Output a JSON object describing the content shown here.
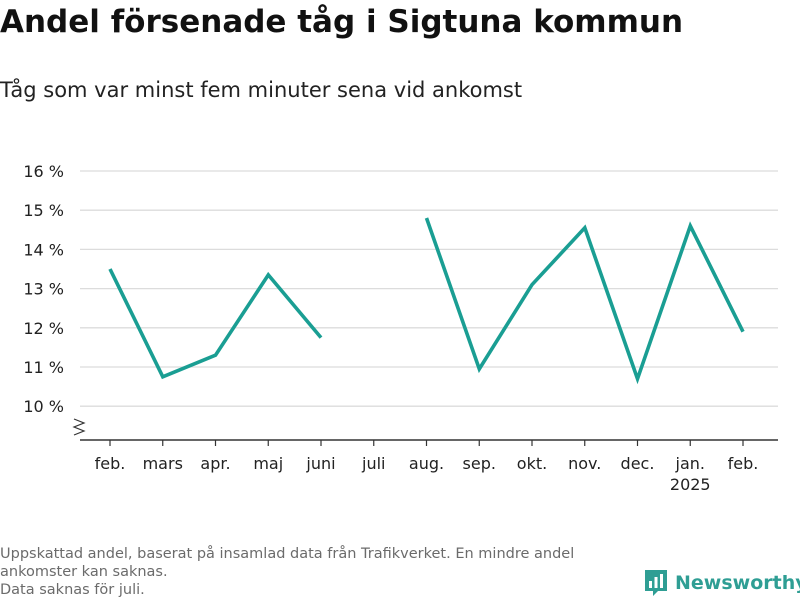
{
  "header": {
    "title": "Andel försenade tåg i Sigtuna kommun",
    "subtitle": "Tåg som var minst fem minuter sena vid ankomst"
  },
  "footer": {
    "note_line1": "Uppskattad andel, baserat på insamlad data från Trafikverket. En mindre andel ankomster kan saknas.",
    "note_line2": "Data saknas för juli.",
    "brand": "Newsworthy",
    "brand_color": "#2f9e94"
  },
  "chart_data": {
    "type": "line",
    "title": "Andel försenade tåg i Sigtuna kommun",
    "subtitle": "Tåg som var minst fem minuter sena vid ankomst",
    "categories": [
      "feb.",
      "mars",
      "apr.",
      "maj",
      "juni",
      "juli",
      "aug.",
      "sep.",
      "okt.",
      "nov.",
      "dec.",
      "jan.",
      "feb."
    ],
    "category_sublabels": [
      "",
      "",
      "",
      "",
      "",
      "",
      "",
      "",
      "",
      "",
      "",
      "2025",
      ""
    ],
    "series": [
      {
        "values": [
          13.5,
          10.75,
          11.3,
          13.35,
          11.75,
          null,
          14.8,
          10.95,
          13.1,
          14.55,
          10.7,
          14.6,
          11.9
        ]
      }
    ],
    "yticks": [
      10,
      11,
      12,
      13,
      14,
      15,
      16
    ],
    "ytick_labels": [
      "10 %",
      "11 %",
      "12 %",
      "13 %",
      "14 %",
      "15 %",
      "16 %"
    ],
    "ylim": [
      10,
      16
    ],
    "y_axis_break": true,
    "grid": true,
    "line_color": "#1a9e93"
  }
}
